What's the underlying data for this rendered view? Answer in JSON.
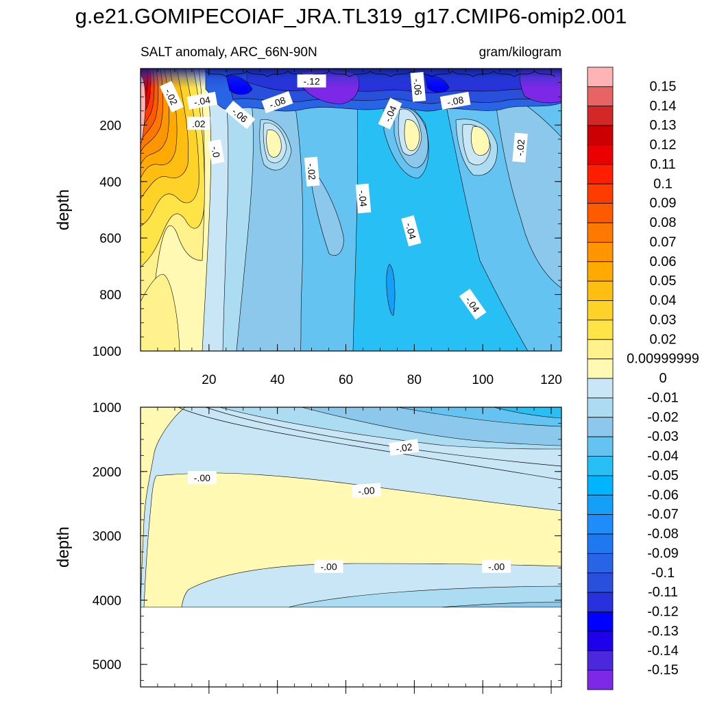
{
  "title": "g.e21.GOMIPECOIAF_JRA.TL319_g17.CMIP6-omip2.001",
  "chart_data": {
    "type": "heatmap",
    "title": "g.e21.GOMIPECOIAF_JRA.TL319_g17.CMIP6-omip2.001",
    "subtitle_left": "SALT anomaly, ARC_66N-90N",
    "subtitle_right": "gram/kilogram",
    "xlim": [
      0,
      123
    ],
    "x_ticks": [
      "20",
      "40",
      "60",
      "80",
      "100",
      "120"
    ],
    "panels": [
      {
        "name": "upper",
        "ylabel": "depth",
        "ylim": [
          0,
          1000
        ],
        "y_ticks": [
          "200",
          "400",
          "600",
          "800",
          "1000"
        ],
        "contour_labels": [
          {
            "text": "-.02",
            "x": 9,
            "y": 100,
            "rot": 65
          },
          {
            "text": "-.04",
            "x": 18,
            "y": 115,
            "rot": -10
          },
          {
            "text": ".02",
            "x": 17,
            "y": 195,
            "rot": 0
          },
          {
            "text": "-.0",
            "x": 22,
            "y": 295,
            "rot": 80
          },
          {
            "text": "-.06",
            "x": 29,
            "y": 165,
            "rot": 40
          },
          {
            "text": "-.08",
            "x": 40,
            "y": 120,
            "rot": -20
          },
          {
            "text": "-.12",
            "x": 50,
            "y": 45,
            "rot": 0
          },
          {
            "text": "-.02",
            "x": 50,
            "y": 365,
            "rot": 85
          },
          {
            "text": "-.04",
            "x": 65,
            "y": 460,
            "rot": 85
          },
          {
            "text": "-.04",
            "x": 73,
            "y": 160,
            "rot": -65
          },
          {
            "text": "-.06",
            "x": 81,
            "y": 65,
            "rot": 85
          },
          {
            "text": "-.08",
            "x": 92,
            "y": 115,
            "rot": -10
          },
          {
            "text": "-.04",
            "x": 79,
            "y": 575,
            "rot": 75
          },
          {
            "text": "-.02",
            "x": 111,
            "y": 280,
            "rot": -85
          },
          {
            "text": "-.04",
            "x": 97,
            "y": 835,
            "rot": 55
          }
        ]
      },
      {
        "name": "lower",
        "ylabel": "depth",
        "ylim": [
          1000,
          5350
        ],
        "y_ticks": [
          "1000",
          "2000",
          "3000",
          "4000",
          "5000"
        ],
        "contour_labels": [
          {
            "text": "-.02",
            "x": 77,
            "y": 1630,
            "rot": -8
          },
          {
            "text": "-.00",
            "x": 18,
            "y": 2100,
            "rot": 0
          },
          {
            "text": "-.00",
            "x": 66,
            "y": 2300,
            "rot": -4
          },
          {
            "text": "-.00",
            "x": 55,
            "y": 3480,
            "rot": 0
          },
          {
            "text": "-.00",
            "x": 104,
            "y": 3480,
            "rot": 0
          }
        ]
      }
    ],
    "colorbar": {
      "labels": [
        "0.15",
        "0.14",
        "0.13",
        "0.12",
        "0.11",
        "0.1",
        "0.09",
        "0.08",
        "0.07",
        "0.06",
        "0.05",
        "0.04",
        "0.03",
        "0.02",
        "0.00999999",
        "0",
        "-0.01",
        "-0.02",
        "-0.03",
        "-0.04",
        "-0.05",
        "-0.06",
        "-0.07",
        "-0.08",
        "-0.09",
        "-0.1",
        "-0.11",
        "-0.12",
        "-0.13",
        "-0.14",
        "-0.15"
      ],
      "colors": [
        "#ffb4b4",
        "#e86464",
        "#d42828",
        "#cc0000",
        "#ea0000",
        "#ff1e00",
        "#ff3c00",
        "#ff5a00",
        "#ff7800",
        "#ff9600",
        "#ffaa00",
        "#ffbe10",
        "#ffd228",
        "#ffe448",
        "#fff28c",
        "#fff9b4",
        "#c8e6f5",
        "#acdcf2",
        "#8cc8ec",
        "#64c3f0",
        "#28bff5",
        "#00b4ff",
        "#14a0f8",
        "#1e8cfa",
        "#1e78f0",
        "#2864e6",
        "#2850dc",
        "#2832dc",
        "#0000ff",
        "#1e00ea",
        "#4b28dc",
        "#7d28e6"
      ]
    }
  }
}
